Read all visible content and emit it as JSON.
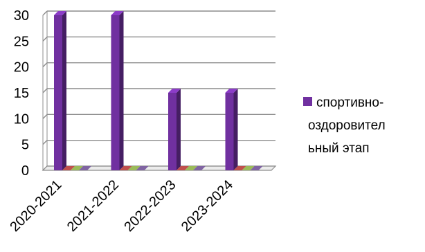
{
  "chart_data": {
    "type": "bar",
    "style": "3d-clustered-column",
    "categories": [
      "2020-2021",
      "2021-2022",
      "2022-2023",
      "2023-2024"
    ],
    "series": [
      {
        "name": "спортивно-оздоровительный этап",
        "values": [
          30,
          30,
          15,
          15
        ],
        "color": "#7030A0"
      },
      {
        "values": [
          0,
          0,
          0,
          0
        ],
        "color": "#C0504D"
      },
      {
        "values": [
          0,
          0,
          0,
          0
        ],
        "color": "#9BBB59"
      },
      {
        "values": [
          0,
          0,
          0,
          0
        ],
        "color": "#8064A2"
      }
    ],
    "ylim": [
      0,
      30
    ],
    "yticks": [
      0,
      5,
      10,
      15,
      20,
      25,
      30
    ],
    "grid": true,
    "legend": {
      "position": "right",
      "lines": [
        "спортивно-",
        "оздоровител",
        "ьный этап"
      ]
    }
  }
}
